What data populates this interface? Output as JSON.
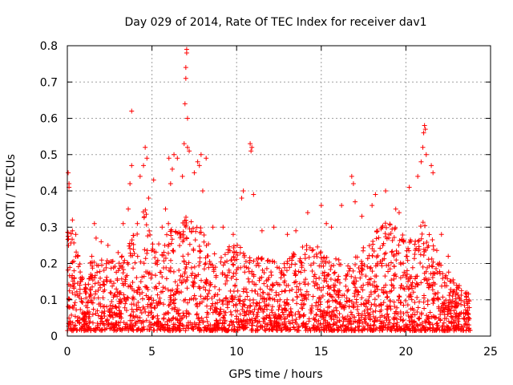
{
  "chart_data": {
    "type": "scatter",
    "title": "Day 029 of 2014, Rate Of TEC Index for receiver dav1",
    "xlabel": "GPS time / hours",
    "ylabel": "ROTI / TECUs",
    "xlim": [
      0,
      25
    ],
    "ylim": [
      0,
      0.8
    ],
    "x_ticks": [
      0,
      5,
      10,
      15,
      20,
      25
    ],
    "y_ticks": [
      0,
      0.1,
      0.2,
      0.3,
      0.4,
      0.5,
      0.6,
      0.7,
      0.8
    ],
    "x_tick_labels": [
      "0",
      "5",
      "10",
      "15",
      "20",
      "25"
    ],
    "y_tick_labels": [
      "0",
      "0.1",
      "0.2",
      "0.3",
      "0.4",
      "0.5",
      "0.6",
      "0.7",
      "0.8"
    ],
    "grid": true,
    "marker": "plus",
    "series_color": "#ff0000",
    "data_x_range": [
      0,
      23.8
    ],
    "series": [
      {
        "points": [
          [
            0.05,
            0.45
          ],
          [
            0.1,
            0.42
          ],
          [
            0.1,
            0.41
          ],
          [
            0.3,
            0.32
          ],
          [
            0.3,
            0.29
          ],
          [
            0.5,
            0.28
          ],
          [
            0.6,
            0.22
          ],
          [
            1.6,
            0.31
          ],
          [
            1.7,
            0.27
          ],
          [
            2.0,
            0.26
          ],
          [
            2.4,
            0.25
          ],
          [
            3.0,
            0.23
          ],
          [
            3.3,
            0.31
          ],
          [
            3.6,
            0.35
          ],
          [
            3.7,
            0.42
          ],
          [
            3.8,
            0.47
          ],
          [
            3.8,
            0.62
          ],
          [
            4.3,
            0.44
          ],
          [
            4.5,
            0.47
          ],
          [
            4.6,
            0.52
          ],
          [
            4.7,
            0.49
          ],
          [
            4.8,
            0.38
          ],
          [
            5.1,
            0.43
          ],
          [
            5.6,
            0.3
          ],
          [
            5.8,
            0.35
          ],
          [
            6.0,
            0.49
          ],
          [
            6.1,
            0.42
          ],
          [
            6.2,
            0.46
          ],
          [
            6.3,
            0.5
          ],
          [
            6.5,
            0.49
          ],
          [
            6.8,
            0.44
          ],
          [
            6.9,
            0.53
          ],
          [
            6.95,
            0.64
          ],
          [
            7.0,
            0.71
          ],
          [
            7.0,
            0.74
          ],
          [
            7.05,
            0.78
          ],
          [
            7.05,
            0.79
          ],
          [
            7.1,
            0.6
          ],
          [
            7.1,
            0.52
          ],
          [
            7.2,
            0.51
          ],
          [
            7.5,
            0.45
          ],
          [
            7.7,
            0.48
          ],
          [
            7.8,
            0.47
          ],
          [
            7.9,
            0.5
          ],
          [
            8.0,
            0.4
          ],
          [
            8.2,
            0.49
          ],
          [
            8.6,
            0.3
          ],
          [
            9.2,
            0.3
          ],
          [
            9.8,
            0.28
          ],
          [
            10.3,
            0.38
          ],
          [
            10.4,
            0.4
          ],
          [
            10.8,
            0.53
          ],
          [
            10.85,
            0.51
          ],
          [
            10.9,
            0.52
          ],
          [
            11.0,
            0.39
          ],
          [
            11.5,
            0.29
          ],
          [
            12.2,
            0.3
          ],
          [
            13.0,
            0.28
          ],
          [
            13.5,
            0.29
          ],
          [
            14.2,
            0.34
          ],
          [
            15.0,
            0.36
          ],
          [
            15.3,
            0.31
          ],
          [
            15.6,
            0.3
          ],
          [
            16.2,
            0.36
          ],
          [
            16.8,
            0.44
          ],
          [
            16.9,
            0.42
          ],
          [
            17.0,
            0.37
          ],
          [
            17.4,
            0.33
          ],
          [
            18.0,
            0.36
          ],
          [
            18.2,
            0.39
          ],
          [
            18.8,
            0.4
          ],
          [
            19.4,
            0.35
          ],
          [
            19.6,
            0.34
          ],
          [
            20.2,
            0.41
          ],
          [
            20.7,
            0.44
          ],
          [
            20.9,
            0.48
          ],
          [
            21.0,
            0.52
          ],
          [
            21.05,
            0.56
          ],
          [
            21.1,
            0.58
          ],
          [
            21.15,
            0.57
          ],
          [
            21.2,
            0.5
          ],
          [
            21.5,
            0.47
          ],
          [
            21.6,
            0.45
          ],
          [
            22.1,
            0.28
          ],
          [
            22.5,
            0.22
          ],
          [
            23.0,
            0.14
          ],
          [
            23.6,
            0.12
          ]
        ]
      }
    ]
  }
}
